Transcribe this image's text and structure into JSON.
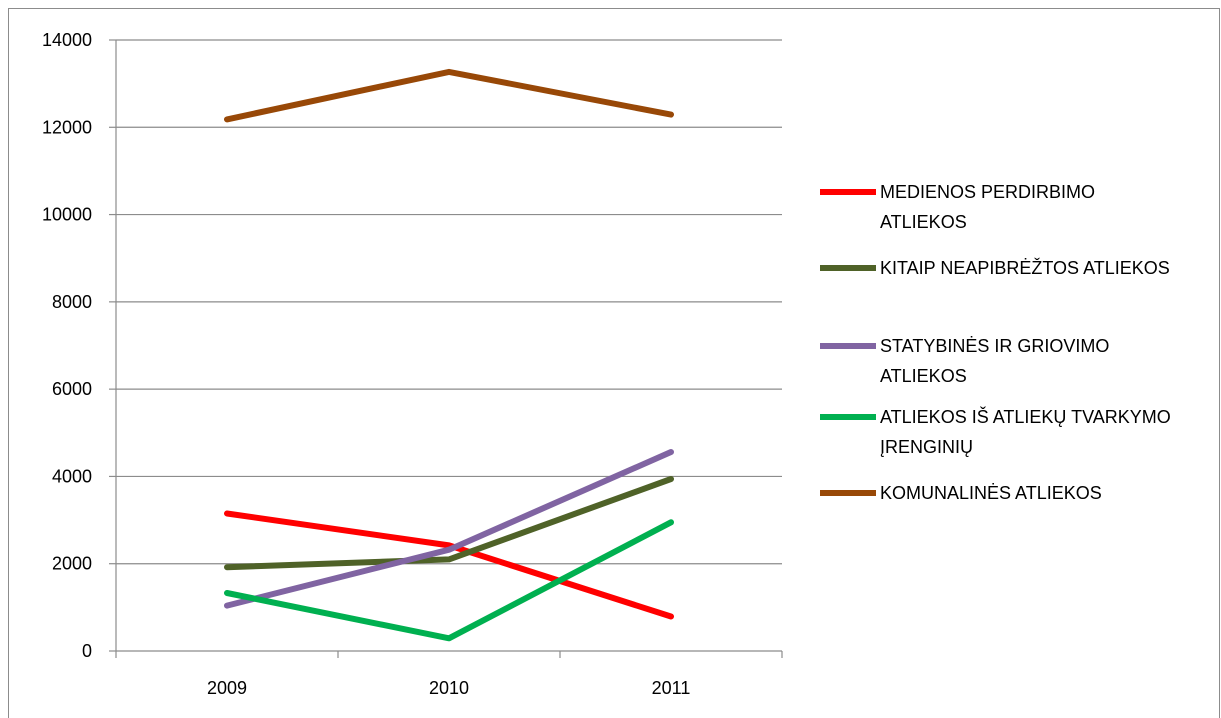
{
  "chart_data": {
    "type": "line",
    "title": "",
    "xlabel": "",
    "ylabel": "",
    "categories": [
      "2009",
      "2010",
      "2011"
    ],
    "ylim": [
      0,
      14000
    ],
    "yticks": [
      0,
      2000,
      4000,
      6000,
      8000,
      10000,
      12000,
      14000
    ],
    "ytick_labels": [
      "0",
      "2000",
      "4000",
      "6000",
      "8000",
      "10000",
      "12000",
      "14000"
    ],
    "grid": "horizontal",
    "legend_position": "right",
    "series": [
      {
        "name": "MEDIENOS PERDIRBIMO ATLIEKOS",
        "legend_lines": [
          "MEDIENOS PERDIRBIMO",
          "ATLIEKOS"
        ],
        "color": "#ff0000",
        "values": [
          3150,
          2420,
          790
        ]
      },
      {
        "name": "KITAIP NEAPIBRĖŽTOS ATLIEKOS",
        "legend_lines": [
          "KITAIP NEAPIBRĖŽTOS ATLIEKOS"
        ],
        "color": "#4f6228",
        "values": [
          1920,
          2100,
          3940
        ]
      },
      {
        "name": "STATYBINĖS IR GRIOVIMO ATLIEKOS",
        "legend_lines": [
          "STATYBINĖS IR GRIOVIMO",
          "ATLIEKOS"
        ],
        "color": "#8064a2",
        "values": [
          1040,
          2320,
          4560
        ]
      },
      {
        "name": "ATLIEKOS IŠ ATLIEKŲ TVARKYMO ĮRENGINIŲ",
        "legend_lines": [
          "ATLIEKOS IŠ ATLIEKŲ TVARKYMO",
          "ĮRENGINIŲ"
        ],
        "color": "#00b050",
        "values": [
          1330,
          290,
          2950
        ]
      },
      {
        "name": "KOMUNALINĖS ATLIEKOS",
        "legend_lines": [
          "KOMUNALINĖS ATLIEKOS"
        ],
        "color": "#984807",
        "values": [
          12180,
          13270,
          12290
        ]
      }
    ]
  }
}
